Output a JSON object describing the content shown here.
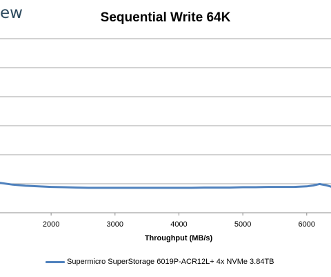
{
  "brand": {
    "text": "ew"
  },
  "chart_data": {
    "type": "line",
    "title": "Sequential Write 64K",
    "xlabel": "Throughput (MB/s)",
    "ylabel": "",
    "x_ticks": [
      2000,
      3000,
      4000,
      5000,
      6000
    ],
    "xlim": [
      1200,
      6380
    ],
    "ylim": [
      0,
      6
    ],
    "y_gridlines": [
      1,
      2,
      3,
      4,
      5,
      6
    ],
    "grid": true,
    "legend_position": "bottom",
    "series": [
      {
        "name": "Supermicro SuperStorage 6019P-ACR12L+ 4x NVMe 3.84TB",
        "color": "#4f81bd",
        "x": [
          1200,
          1400,
          1600,
          1800,
          2000,
          2200,
          2400,
          2600,
          2800,
          3000,
          3200,
          3400,
          3600,
          3800,
          4000,
          4200,
          4400,
          4600,
          4800,
          5000,
          5200,
          5400,
          5600,
          5800,
          6000,
          6100,
          6200,
          6300,
          6380
        ],
        "y": [
          1.03,
          0.97,
          0.93,
          0.91,
          0.89,
          0.88,
          0.87,
          0.86,
          0.86,
          0.86,
          0.86,
          0.86,
          0.86,
          0.86,
          0.86,
          0.86,
          0.87,
          0.87,
          0.87,
          0.88,
          0.88,
          0.89,
          0.89,
          0.89,
          0.91,
          0.94,
          0.99,
          0.95,
          0.9
        ]
      }
    ]
  }
}
